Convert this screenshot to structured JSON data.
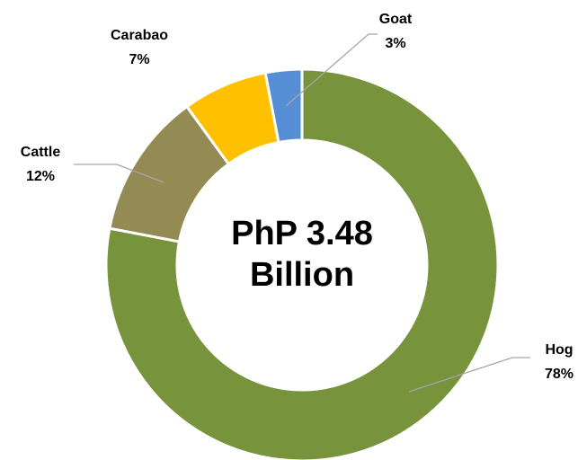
{
  "chart_data": {
    "type": "donut",
    "center_label": [
      "PhP 3.48",
      "Billion"
    ],
    "categories": [
      "Hog",
      "Cattle",
      "Carabao",
      "Goat"
    ],
    "values": [
      78,
      12,
      7,
      3
    ],
    "value_labels": [
      "78%",
      "12%",
      "7%",
      "3%"
    ],
    "colors": [
      "#77933c",
      "#948a54",
      "#ffc000",
      "#558ed5"
    ]
  }
}
